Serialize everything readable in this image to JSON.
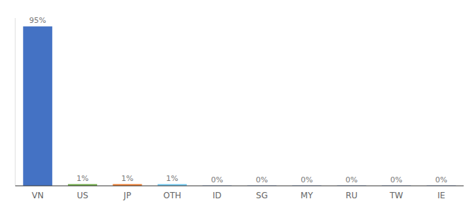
{
  "chart_data": {
    "type": "bar",
    "categories": [
      "VN",
      "US",
      "JP",
      "OTH",
      "ID",
      "SG",
      "MY",
      "RU",
      "TW",
      "IE"
    ],
    "values": [
      95,
      1,
      1,
      1,
      0.15,
      0.15,
      0.15,
      0.15,
      0.15,
      0.15
    ],
    "value_labels": [
      "95%",
      "1%",
      "1%",
      "1%",
      "0%",
      "0%",
      "0%",
      "0%",
      "0%",
      "0%"
    ],
    "colors": [
      "#4472c4",
      "#70ad47",
      "#ed7d31",
      "#70c8f0",
      "#4472c4",
      "#4472c4",
      "#4472c4",
      "#4472c4",
      "#4472c4",
      "#4472c4"
    ],
    "ylim": [
      0,
      100
    ],
    "grid": false,
    "data_labels": true,
    "tick_labels": "x"
  }
}
